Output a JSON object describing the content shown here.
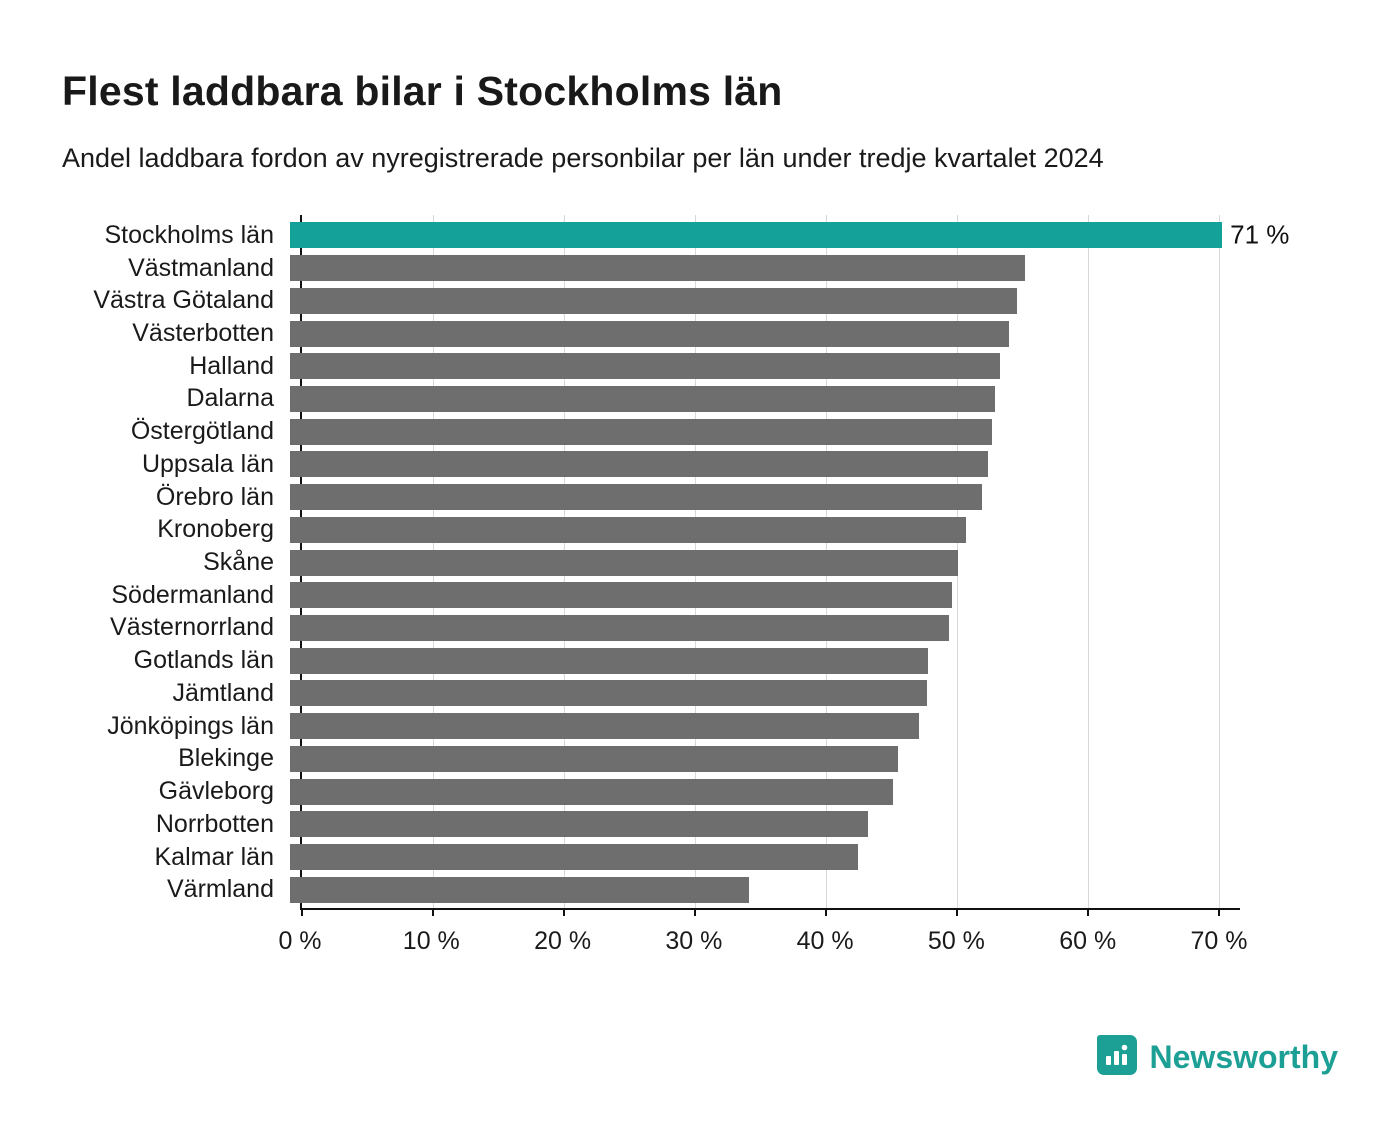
{
  "header": {
    "title": "Flest laddbara bilar i Stockholms län",
    "subtitle": "Andel laddbara fordon av nyregistrerade personbilar per län under tredje kvartalet 2024"
  },
  "chart_data": {
    "type": "bar",
    "orientation": "horizontal",
    "title": "Flest laddbara bilar i Stockholms län",
    "subtitle": "Andel laddbara fordon av nyregistrerade personbilar per län under tredje kvartalet 2024",
    "categories": [
      "Stockholms län",
      "Västmanland",
      "Västra Götaland",
      "Västerbotten",
      "Halland",
      "Dalarna",
      "Östergötland",
      "Uppsala län",
      "Örebro län",
      "Kronoberg",
      "Skåne",
      "Södermanland",
      "Västernorrland",
      "Gotlands län",
      "Jämtland",
      "Jönköpings län",
      "Blekinge",
      "Gävleborg",
      "Norrbotten",
      "Kalmar län",
      "Värmland"
    ],
    "values": [
      71,
      56,
      55.4,
      54.8,
      54.1,
      53.7,
      53.5,
      53.2,
      52.7,
      51.5,
      50.9,
      50.4,
      50.2,
      48.6,
      48.5,
      47.9,
      46.3,
      45.9,
      44,
      43.3,
      35
    ],
    "unit": "%",
    "highlight_index": 0,
    "highlight_color": "#13a199",
    "bar_color": "#6e6e6e",
    "value_label": "71 %",
    "x_ticks": [
      "0 %",
      "10 %",
      "20 %",
      "30 %",
      "40 %",
      "50 %",
      "60 %",
      "70 %"
    ],
    "x_tick_values": [
      0,
      10,
      20,
      30,
      40,
      50,
      60,
      70
    ],
    "xlim": [
      0,
      71.6
    ],
    "grid": true,
    "legend": false
  },
  "footer": {
    "brand": "Newsworthy",
    "brand_color": "#1c9f94"
  }
}
